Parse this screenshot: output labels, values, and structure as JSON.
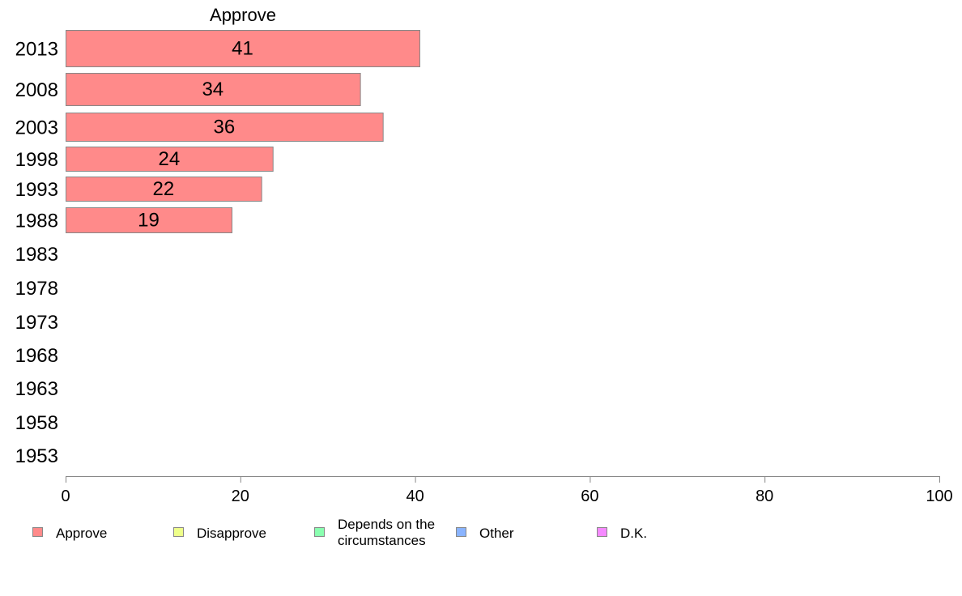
{
  "chart_data": {
    "type": "bar",
    "orientation": "horizontal",
    "column_title": "Approve",
    "categories": [
      "2013",
      "2008",
      "2003",
      "1998",
      "1993",
      "1988",
      "1983",
      "1978",
      "1973",
      "1968",
      "1963",
      "1958",
      "1953"
    ],
    "series": [
      {
        "name": "Approve",
        "values": [
          40.5,
          33.7,
          36.3,
          23.7,
          22.4,
          19.0,
          null,
          null,
          null,
          null,
          null,
          null,
          null
        ]
      }
    ],
    "data_labels": [
      "41",
      "34",
      "36",
      "24",
      "22",
      "19",
      "",
      "",
      "",
      "",
      "",
      "",
      ""
    ],
    "xlim": [
      0,
      100
    ],
    "xticks": [
      "0",
      "20",
      "40",
      "60",
      "80",
      "100"
    ],
    "grid": false,
    "legend": {
      "position": "bottom",
      "items": [
        {
          "label_lines": [
            "Approve"
          ],
          "color": "#ff8a8a"
        },
        {
          "label_lines": [
            "Disapprove"
          ],
          "color": "#eeff8a"
        },
        {
          "label_lines": [
            "Depends on the",
            "circumstances"
          ],
          "color": "#8affb0"
        },
        {
          "label_lines": [
            "Other"
          ],
          "color": "#8ab4ff"
        },
        {
          "label_lines": [
            "D.K."
          ],
          "color": "#f58aff"
        }
      ]
    },
    "colors": {
      "bar_fill": "#ff8a8a",
      "bar_stroke": "#888888",
      "axis": "#888888"
    }
  }
}
